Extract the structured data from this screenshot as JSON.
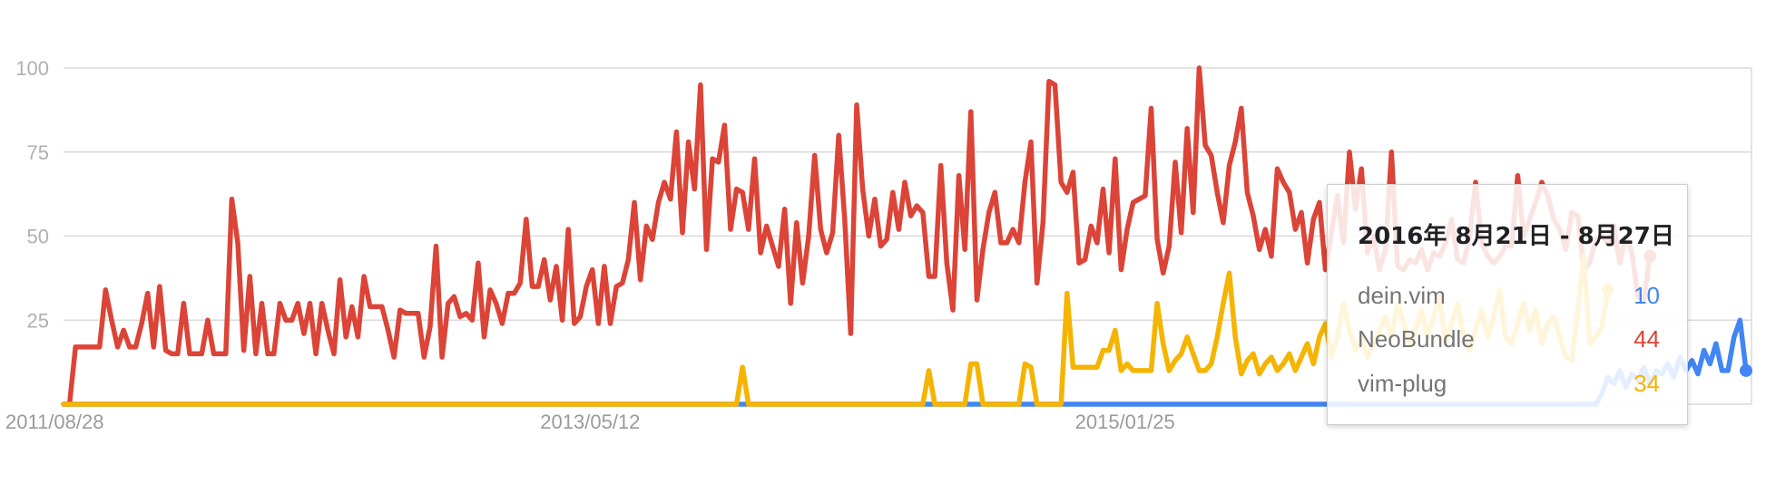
{
  "chart_data": {
    "type": "line",
    "ylim": [
      0,
      100
    ],
    "yticks": [
      "100",
      "75",
      "50",
      "25"
    ],
    "xticks": [
      {
        "label": "2011/08/28",
        "index": 0
      },
      {
        "label": "2013/05/12",
        "index": 89
      },
      {
        "label": "2015/01/25",
        "index": 178
      }
    ],
    "grid": true,
    "series": [
      {
        "name": "dein.vim",
        "color": "#4285F4",
        "values": [
          0,
          0,
          0,
          0,
          0,
          0,
          0,
          0,
          0,
          0,
          0,
          0,
          0,
          0,
          0,
          0,
          0,
          0,
          0,
          0,
          0,
          0,
          0,
          0,
          0,
          0,
          0,
          0,
          0,
          0,
          0,
          0,
          0,
          0,
          0,
          0,
          0,
          0,
          0,
          0,
          0,
          0,
          0,
          0,
          0,
          0,
          0,
          0,
          0,
          0,
          0,
          0,
          0,
          0,
          0,
          0,
          0,
          0,
          0,
          0,
          0,
          0,
          0,
          0,
          0,
          0,
          0,
          0,
          0,
          0,
          0,
          0,
          0,
          0,
          0,
          0,
          0,
          0,
          0,
          0,
          0,
          0,
          0,
          0,
          0,
          0,
          0,
          0,
          0,
          0,
          0,
          0,
          0,
          0,
          0,
          0,
          0,
          0,
          0,
          0,
          0,
          0,
          0,
          0,
          0,
          0,
          0,
          0,
          0,
          0,
          0,
          0,
          0,
          0,
          0,
          0,
          0,
          0,
          0,
          0,
          0,
          0,
          0,
          0,
          0,
          0,
          0,
          0,
          0,
          0,
          0,
          0,
          0,
          0,
          0,
          0,
          0,
          0,
          0,
          0,
          0,
          0,
          0,
          0,
          0,
          0,
          0,
          0,
          0,
          0,
          0,
          0,
          0,
          0,
          0,
          0,
          0,
          0,
          0,
          0,
          0,
          0,
          0,
          0,
          0,
          0,
          0,
          0,
          0,
          0,
          0,
          0,
          0,
          0,
          0,
          0,
          0,
          0,
          0,
          0,
          0,
          0,
          0,
          0,
          0,
          0,
          0,
          0,
          0,
          0,
          0,
          0,
          0,
          0,
          0,
          0,
          0,
          0,
          0,
          0,
          0,
          0,
          0,
          0,
          0,
          0,
          0,
          0,
          0,
          0,
          0,
          0,
          0,
          0,
          0,
          0,
          0,
          0,
          0,
          0,
          0,
          0,
          0,
          0,
          0,
          0,
          0,
          0,
          0,
          0,
          0,
          0,
          0,
          0,
          0,
          0,
          0,
          0,
          0,
          0,
          0,
          0,
          0,
          0,
          0,
          0,
          0,
          0,
          0,
          0,
          0,
          0,
          0,
          0,
          0,
          0,
          3,
          8,
          6,
          10,
          5,
          9,
          7,
          11,
          6,
          10,
          9,
          12,
          8,
          14,
          10,
          13,
          9,
          16,
          12,
          18,
          10,
          10,
          20,
          25,
          10
        ]
      },
      {
        "name": "NeoBundle",
        "color": "#DB4437",
        "values": [
          0,
          0,
          17,
          17,
          17,
          17,
          17,
          34,
          25,
          17,
          22,
          17,
          17,
          24,
          33,
          17,
          35,
          16,
          15,
          15,
          30,
          15,
          15,
          15,
          25,
          15,
          15,
          15,
          61,
          48,
          16,
          38,
          15,
          30,
          15,
          15,
          30,
          25,
          25,
          30,
          21,
          30,
          15,
          30,
          22,
          15,
          37,
          20,
          29,
          20,
          38,
          29,
          29,
          29,
          22,
          14,
          28,
          27,
          27,
          27,
          14,
          23,
          47,
          14,
          30,
          32,
          26,
          27,
          25,
          42,
          20,
          34,
          30,
          24,
          33,
          33,
          36,
          55,
          35,
          35,
          43,
          31,
          41,
          25,
          52,
          24,
          26,
          35,
          40,
          24,
          41,
          24,
          35,
          36,
          43,
          60,
          37,
          53,
          49,
          60,
          66,
          61,
          81,
          51,
          78,
          64,
          95,
          46,
          73,
          72,
          83,
          52,
          64,
          63,
          52,
          73,
          45,
          53,
          47,
          41,
          58,
          30,
          54,
          36,
          50,
          74,
          52,
          45,
          51,
          80,
          55,
          21,
          89,
          64,
          50,
          61,
          47,
          49,
          63,
          52,
          66,
          56,
          59,
          57,
          38,
          38,
          71,
          42,
          28,
          68,
          46,
          87,
          31,
          46,
          57,
          63,
          48,
          48,
          52,
          48,
          66,
          78,
          36,
          54,
          96,
          95,
          66,
          63,
          69,
          42,
          43,
          53,
          48,
          64,
          45,
          73,
          40,
          52,
          60,
          61,
          62,
          88,
          49,
          39,
          47,
          72,
          51,
          82,
          57,
          100,
          77,
          74,
          63,
          54,
          71,
          78,
          88,
          63,
          56,
          46,
          52,
          44,
          70,
          66,
          63,
          52,
          57,
          42,
          55,
          60,
          40,
          51,
          62,
          48,
          75,
          58,
          70,
          45,
          50,
          40,
          46,
          75,
          41,
          40,
          43,
          42,
          46,
          40,
          45,
          44,
          48,
          55,
          43,
          42,
          50,
          66,
          48,
          44,
          42,
          44,
          47,
          47,
          68,
          50,
          55,
          60,
          66,
          62,
          55,
          52,
          46,
          57,
          56,
          40,
          42,
          49,
          50,
          48,
          53,
          42,
          50,
          45,
          32,
          31,
          44
        ]
      },
      {
        "name": "vim-plug",
        "color": "#F4B400",
        "values": [
          0,
          0,
          0,
          0,
          0,
          0,
          0,
          0,
          0,
          0,
          0,
          0,
          0,
          0,
          0,
          0,
          0,
          0,
          0,
          0,
          0,
          0,
          0,
          0,
          0,
          0,
          0,
          0,
          0,
          0,
          0,
          0,
          0,
          0,
          0,
          0,
          0,
          0,
          0,
          0,
          0,
          0,
          0,
          0,
          0,
          0,
          0,
          0,
          0,
          0,
          0,
          0,
          0,
          0,
          0,
          0,
          0,
          0,
          0,
          0,
          0,
          0,
          0,
          0,
          0,
          0,
          0,
          0,
          0,
          0,
          0,
          0,
          0,
          0,
          0,
          0,
          0,
          0,
          0,
          0,
          0,
          0,
          0,
          0,
          0,
          0,
          0,
          0,
          0,
          0,
          0,
          0,
          0,
          0,
          0,
          0,
          0,
          0,
          0,
          0,
          0,
          0,
          0,
          0,
          0,
          0,
          0,
          0,
          0,
          0,
          0,
          0,
          0,
          11,
          0,
          0,
          0,
          0,
          0,
          0,
          0,
          0,
          0,
          0,
          0,
          0,
          0,
          0,
          0,
          0,
          0,
          0,
          0,
          0,
          0,
          0,
          0,
          0,
          0,
          0,
          0,
          0,
          0,
          0,
          10,
          0,
          0,
          0,
          0,
          0,
          0,
          12,
          12,
          0,
          0,
          0,
          0,
          0,
          0,
          0,
          12,
          11,
          0,
          0,
          0,
          0,
          0,
          33,
          11,
          11,
          11,
          11,
          11,
          16,
          16,
          22,
          10,
          12,
          10,
          10,
          10,
          10,
          30,
          18,
          10,
          13,
          15,
          20,
          15,
          10,
          10,
          12,
          20,
          30,
          39,
          20,
          9,
          13,
          15,
          9,
          12,
          14,
          10,
          12,
          15,
          10,
          14,
          18,
          12,
          20,
          24,
          14,
          20,
          30,
          22,
          16,
          20,
          14,
          18,
          22,
          26,
          20,
          30,
          24,
          18,
          22,
          28,
          20,
          26,
          32,
          18,
          24,
          30,
          20,
          16,
          22,
          28,
          20,
          26,
          34,
          20,
          18,
          24,
          30,
          22,
          28,
          18,
          24,
          26,
          20,
          14,
          13,
          28,
          44,
          18,
          20,
          23,
          34
        ]
      }
    ]
  },
  "tooltip": {
    "title": "2016年 8月21日 - 8月27日",
    "rows": [
      {
        "name": "dein.vim",
        "value": "10",
        "color": "#4285F4"
      },
      {
        "name": "NeoBundle",
        "value": "44",
        "color": "#DB4437"
      },
      {
        "name": "vim-plug",
        "value": "34",
        "color": "#F4B400"
      }
    ]
  }
}
